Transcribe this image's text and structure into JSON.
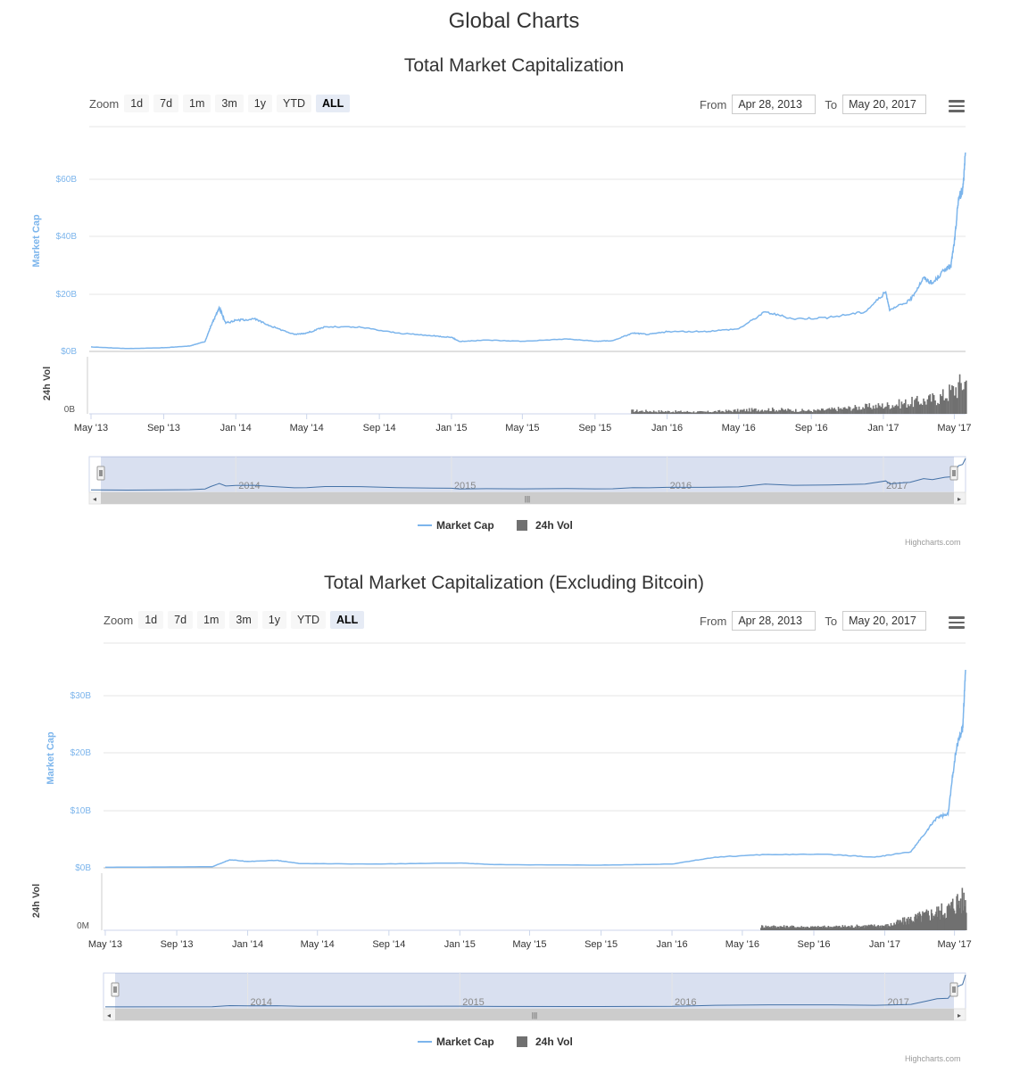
{
  "page": {
    "title": "Global Charts"
  },
  "charts": [
    {
      "title": "Total Market Capitalization",
      "zoom_label": "Zoom",
      "zoom_buttons": [
        "1d",
        "7d",
        "1m",
        "3m",
        "1y",
        "YTD",
        "ALL"
      ],
      "zoom_active": "ALL",
      "from_label": "From",
      "from_value": "Apr 28, 2013",
      "to_label": "To",
      "to_value": "May 20, 2017",
      "credit": "Highcharts.com"
    },
    {
      "title": "Total Market Capitalization (Excluding Bitcoin)",
      "zoom_label": "Zoom",
      "zoom_buttons": [
        "1d",
        "7d",
        "1m",
        "3m",
        "1y",
        "YTD",
        "ALL"
      ],
      "zoom_active": "ALL",
      "from_label": "From",
      "from_value": "Apr 28, 2013",
      "to_label": "To",
      "to_value": "May 20, 2017",
      "credit": "Highcharts.com"
    }
  ],
  "chart_data": [
    {
      "type": "line",
      "title": "Total Market Capitalization",
      "x_range": [
        "2013-04-28",
        "2017-05-20"
      ],
      "x_ticks": [
        "May '13",
        "Sep '13",
        "Jan '14",
        "May '14",
        "Sep '14",
        "Jan '15",
        "May '15",
        "Sep '15",
        "Jan '16",
        "May '16",
        "Sep '16",
        "Jan '17",
        "May '17"
      ],
      "navigator_labels": [
        "2014",
        "2015",
        "2016",
        "2017"
      ],
      "legend": [
        "Market Cap",
        "24h Vol"
      ],
      "legend_position": "bottom-center",
      "colors": {
        "market_cap": "#7cb5ec",
        "volume": "#707070"
      },
      "y_axis_price": {
        "label": "Market Cap",
        "ticks": [
          "$0B",
          "$20B",
          "$40B",
          "$60B"
        ],
        "range": [
          0,
          70
        ]
      },
      "y_axis_volume": {
        "label": "24h Vol",
        "ticks": [
          "0B"
        ]
      },
      "series": [
        {
          "name": "Market Cap",
          "unit": "billion USD",
          "points": [
            [
              "2013-05-01",
              1.6
            ],
            [
              "2013-07-01",
              1.0
            ],
            [
              "2013-09-01",
              1.3
            ],
            [
              "2013-10-15",
              1.9
            ],
            [
              "2013-11-10",
              3.5
            ],
            [
              "2013-11-20",
              9.0
            ],
            [
              "2013-12-01",
              14.0
            ],
            [
              "2013-12-04",
              15.5
            ],
            [
              "2013-12-15",
              10.0
            ],
            [
              "2014-01-01",
              11.0
            ],
            [
              "2014-02-01",
              11.5
            ],
            [
              "2014-03-01",
              9.0
            ],
            [
              "2014-04-10",
              6.0
            ],
            [
              "2014-05-01",
              6.5
            ],
            [
              "2014-06-01",
              8.7
            ],
            [
              "2014-08-01",
              8.5
            ],
            [
              "2014-10-01",
              6.5
            ],
            [
              "2014-12-01",
              5.5
            ],
            [
              "2015-01-01",
              5.0
            ],
            [
              "2015-01-15",
              3.5
            ],
            [
              "2015-03-01",
              4.0
            ],
            [
              "2015-05-01",
              3.6
            ],
            [
              "2015-07-15",
              4.4
            ],
            [
              "2015-09-01",
              3.6
            ],
            [
              "2015-10-01",
              3.8
            ],
            [
              "2015-11-04",
              6.5
            ],
            [
              "2015-12-01",
              6.0
            ],
            [
              "2016-01-01",
              7.0
            ],
            [
              "2016-03-01",
              7.0
            ],
            [
              "2016-05-01",
              8.0
            ],
            [
              "2016-06-15",
              14.0
            ],
            [
              "2016-08-01",
              11.5
            ],
            [
              "2016-10-01",
              12.0
            ],
            [
              "2016-12-01",
              14.0
            ],
            [
              "2017-01-05",
              21.0
            ],
            [
              "2017-01-12",
              14.5
            ],
            [
              "2017-02-15",
              18.0
            ],
            [
              "2017-03-10",
              26.0
            ],
            [
              "2017-03-25",
              24.0
            ],
            [
              "2017-04-15",
              29.0
            ],
            [
              "2017-04-25",
              30.0
            ],
            [
              "2017-05-02",
              40.0
            ],
            [
              "2017-05-08",
              54.0
            ],
            [
              "2017-05-15",
              57.0
            ],
            [
              "2017-05-20",
              70.0
            ]
          ]
        },
        {
          "name": "24h Vol",
          "unit": "relative",
          "note": "volume bars, relative scale",
          "points": [
            [
              "2015-11-01",
              0.08
            ],
            [
              "2016-03-01",
              0.05
            ],
            [
              "2016-06-15",
              0.12
            ],
            [
              "2016-09-01",
              0.08
            ],
            [
              "2017-01-05",
              0.22
            ],
            [
              "2017-03-15",
              0.35
            ],
            [
              "2017-04-10",
              0.45
            ],
            [
              "2017-05-01",
              0.65
            ],
            [
              "2017-05-20",
              0.85
            ]
          ]
        }
      ]
    },
    {
      "type": "line",
      "title": "Total Market Capitalization (Excluding Bitcoin)",
      "x_range": [
        "2013-04-28",
        "2017-05-20"
      ],
      "x_ticks": [
        "May '13",
        "Sep '13",
        "Jan '14",
        "May '14",
        "Sep '14",
        "Jan '15",
        "May '15",
        "Sep '15",
        "Jan '16",
        "May '16",
        "Sep '16",
        "Jan '17",
        "May '17"
      ],
      "navigator_labels": [
        "2014",
        "2015",
        "2016",
        "2017"
      ],
      "legend": [
        "Market Cap",
        "24h Vol"
      ],
      "legend_position": "bottom-center",
      "colors": {
        "market_cap": "#7cb5ec",
        "volume": "#707070"
      },
      "y_axis_price": {
        "label": "Market Cap",
        "ticks": [
          "$0B",
          "$10B",
          "$20B",
          "$30B"
        ],
        "range": [
          0,
          37
        ]
      },
      "y_axis_volume": {
        "label": "24h Vol",
        "ticks": [
          "0M"
        ]
      },
      "series": [
        {
          "name": "Market Cap",
          "unit": "billion USD",
          "points": [
            [
              "2013-05-01",
              0.1
            ],
            [
              "2013-11-01",
              0.2
            ],
            [
              "2013-12-01",
              1.5
            ],
            [
              "2014-01-01",
              1.2
            ],
            [
              "2014-02-20",
              1.4
            ],
            [
              "2014-04-01",
              0.8
            ],
            [
              "2014-08-01",
              0.7
            ],
            [
              "2015-01-01",
              0.9
            ],
            [
              "2015-03-01",
              0.6
            ],
            [
              "2015-09-01",
              0.5
            ],
            [
              "2016-01-01",
              0.7
            ],
            [
              "2016-03-15",
              2.0
            ],
            [
              "2016-06-15",
              2.5
            ],
            [
              "2016-10-01",
              2.5
            ],
            [
              "2016-12-15",
              2.0
            ],
            [
              "2017-02-15",
              3.0
            ],
            [
              "2017-03-15",
              7.0
            ],
            [
              "2017-04-01",
              9.5
            ],
            [
              "2017-04-20",
              10.0
            ],
            [
              "2017-05-01",
              20.0
            ],
            [
              "2017-05-08",
              24.0
            ],
            [
              "2017-05-15",
              26.0
            ],
            [
              "2017-05-20",
              37.0
            ]
          ]
        },
        {
          "name": "24h Vol",
          "unit": "relative",
          "note": "volume bars, relative scale",
          "points": [
            [
              "2016-06-01",
              0.1
            ],
            [
              "2016-09-01",
              0.08
            ],
            [
              "2017-01-05",
              0.12
            ],
            [
              "2017-03-15",
              0.4
            ],
            [
              "2017-04-20",
              0.55
            ],
            [
              "2017-05-05",
              0.75
            ],
            [
              "2017-05-20",
              0.78
            ]
          ]
        }
      ]
    }
  ]
}
